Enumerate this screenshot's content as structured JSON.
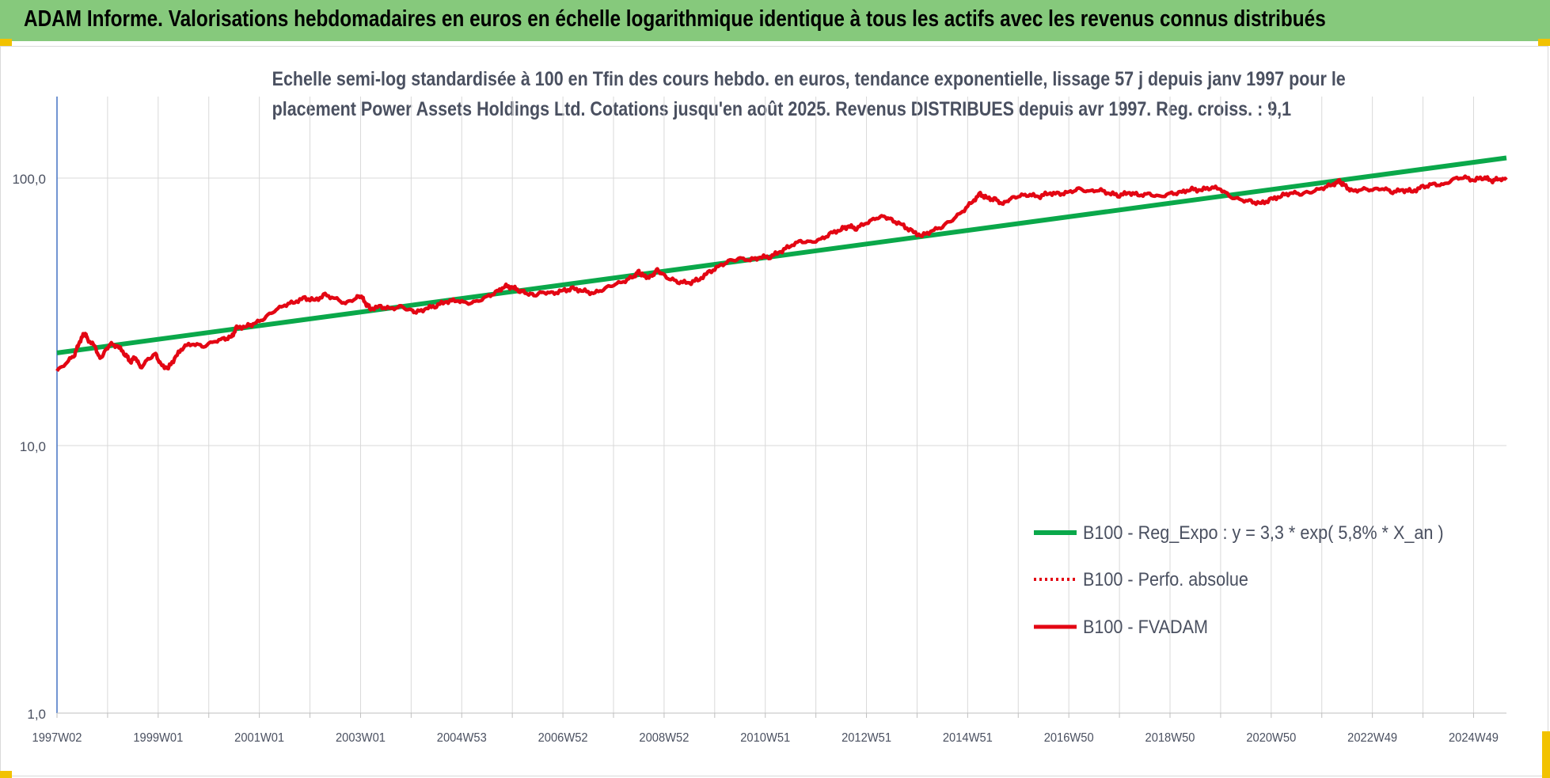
{
  "banner": {
    "title": "ADAM Informe. Valorisations hebdomadaires en euros en échelle logarithmique identique à tous les actifs avec les revenus connus distribués"
  },
  "colors": {
    "banner_bg": "#86c97c",
    "regression": "#0aa84a",
    "performance": "#e30613",
    "grid": "#d9d9d9",
    "axis_text": "#4a5060",
    "handle": "#f2c200"
  },
  "chart_data": {
    "type": "line",
    "title_line1": "Echelle semi-log standardisée à 100 en Tfin des cours hebdo. en euros, tendance exponentielle, lissage 57 j depuis janv 1997 pour le",
    "title_line2": "placement Power Assets Holdings Ltd. Cotations jusqu'en août 2025. Revenus DISTRIBUES depuis avr 1997. Reg. croiss. : 9,1",
    "y_scale": "log",
    "ylim": [
      1,
      200
    ],
    "y_ticks": [
      1,
      10,
      100
    ],
    "y_tick_labels": [
      "1,0",
      "10,0",
      "100,0"
    ],
    "x_range": [
      1997.0,
      2025.65
    ],
    "x_tick_labels": [
      "1997W02",
      "1999W01",
      "2001W01",
      "2003W01",
      "2004W53",
      "2006W52",
      "2008W52",
      "2010W51",
      "2012W51",
      "2014W51",
      "2016W50",
      "2018W50",
      "2020W50",
      "2022W49",
      "2024W49"
    ],
    "x_tick_years": [
      1997.0,
      1999.0,
      2001.0,
      2003.0,
      2005.0,
      2007.0,
      2009.0,
      2011.0,
      2013.0,
      2015.0,
      2017.0,
      2019.0,
      2021.0,
      2023.0,
      2025.0
    ],
    "grid": true,
    "legend_position": "bottom-right",
    "series": [
      {
        "name": "B100 - Reg_Expo : y = 3,3 * exp( 5,8% *  X_an )",
        "style": "solid",
        "points": [
          [
            1997.0,
            22.2
          ],
          [
            2025.65,
            119.0
          ]
        ]
      },
      {
        "name": "B100 - Perfo. absolue",
        "style": "dotted",
        "points": []
      },
      {
        "name": "B100 - FVADAM",
        "style": "solid",
        "points": [
          [
            1997.0,
            19
          ],
          [
            1997.2,
            20.5
          ],
          [
            1997.35,
            22
          ],
          [
            1997.45,
            24.5
          ],
          [
            1997.55,
            26.5
          ],
          [
            1997.6,
            25
          ],
          [
            1997.75,
            23.5
          ],
          [
            1997.85,
            21
          ],
          [
            1997.95,
            22.5
          ],
          [
            1998.05,
            24
          ],
          [
            1998.2,
            23.5
          ],
          [
            1998.35,
            22
          ],
          [
            1998.45,
            20.5
          ],
          [
            1998.55,
            21.5
          ],
          [
            1998.65,
            19.5
          ],
          [
            1998.8,
            21
          ],
          [
            1998.95,
            22
          ],
          [
            1999.05,
            20
          ],
          [
            1999.2,
            19.5
          ],
          [
            1999.35,
            21.5
          ],
          [
            1999.5,
            23.5
          ],
          [
            1999.7,
            24
          ],
          [
            1999.9,
            23.5
          ],
          [
            2000.1,
            24.5
          ],
          [
            2000.3,
            25
          ],
          [
            2000.45,
            25.5
          ],
          [
            2000.55,
            27.5
          ],
          [
            2000.75,
            28
          ],
          [
            2000.9,
            28.5
          ],
          [
            2001.1,
            30
          ],
          [
            2001.3,
            32
          ],
          [
            2001.5,
            33.5
          ],
          [
            2001.7,
            34.5
          ],
          [
            2001.9,
            35.5
          ],
          [
            2002.1,
            35
          ],
          [
            2002.3,
            36.5
          ],
          [
            2002.5,
            35.5
          ],
          [
            2002.7,
            34
          ],
          [
            2002.9,
            35.5
          ],
          [
            2003.0,
            36.5
          ],
          [
            2003.1,
            34
          ],
          [
            2003.2,
            32.5
          ],
          [
            2003.4,
            33
          ],
          [
            2003.6,
            32.5
          ],
          [
            2003.8,
            33
          ],
          [
            2004.0,
            32
          ],
          [
            2004.1,
            31.5
          ],
          [
            2004.3,
            32.5
          ],
          [
            2004.5,
            33.5
          ],
          [
            2004.7,
            34.5
          ],
          [
            2004.9,
            35
          ],
          [
            2005.1,
            34
          ],
          [
            2005.3,
            34.5
          ],
          [
            2005.5,
            36
          ],
          [
            2005.7,
            37.5
          ],
          [
            2005.85,
            39.5
          ],
          [
            2006.0,
            39
          ],
          [
            2006.15,
            38
          ],
          [
            2006.3,
            37
          ],
          [
            2006.45,
            36.5
          ],
          [
            2006.6,
            37.5
          ],
          [
            2006.8,
            37
          ],
          [
            2007.0,
            38
          ],
          [
            2007.2,
            38.5
          ],
          [
            2007.4,
            38
          ],
          [
            2007.6,
            37
          ],
          [
            2007.8,
            38.5
          ],
          [
            2008.0,
            40
          ],
          [
            2008.2,
            41
          ],
          [
            2008.4,
            43
          ],
          [
            2008.5,
            44.5
          ],
          [
            2008.6,
            43
          ],
          [
            2008.75,
            42.5
          ],
          [
            2008.85,
            45.5
          ],
          [
            2008.95,
            44
          ],
          [
            2009.1,
            42
          ],
          [
            2009.3,
            41
          ],
          [
            2009.5,
            40.5
          ],
          [
            2009.7,
            42
          ],
          [
            2009.9,
            44.5
          ],
          [
            2010.1,
            47
          ],
          [
            2010.3,
            49
          ],
          [
            2010.5,
            50
          ],
          [
            2010.7,
            49.5
          ],
          [
            2010.9,
            50.5
          ],
          [
            2011.1,
            51
          ],
          [
            2011.3,
            53
          ],
          [
            2011.5,
            56
          ],
          [
            2011.7,
            58
          ],
          [
            2011.9,
            57.5
          ],
          [
            2012.1,
            59
          ],
          [
            2012.3,
            62
          ],
          [
            2012.5,
            64.5
          ],
          [
            2012.65,
            66
          ],
          [
            2012.8,
            65
          ],
          [
            2013.0,
            68
          ],
          [
            2013.2,
            71
          ],
          [
            2013.35,
            72
          ],
          [
            2013.5,
            69.5
          ],
          [
            2013.7,
            67
          ],
          [
            2013.9,
            63
          ],
          [
            2014.1,
            61
          ],
          [
            2014.3,
            63.5
          ],
          [
            2014.5,
            66
          ],
          [
            2014.7,
            70
          ],
          [
            2014.9,
            75
          ],
          [
            2015.1,
            82
          ],
          [
            2015.25,
            87
          ],
          [
            2015.4,
            84
          ],
          [
            2015.55,
            83
          ],
          [
            2015.7,
            80
          ],
          [
            2015.85,
            84
          ],
          [
            2016.0,
            85.5
          ],
          [
            2016.2,
            87
          ],
          [
            2016.4,
            85
          ],
          [
            2016.6,
            88
          ],
          [
            2016.8,
            87
          ],
          [
            2017.0,
            88.5
          ],
          [
            2017.2,
            91
          ],
          [
            2017.4,
            89
          ],
          [
            2017.6,
            90.5
          ],
          [
            2017.8,
            87.5
          ],
          [
            2018.0,
            86.5
          ],
          [
            2018.2,
            88
          ],
          [
            2018.4,
            86.5
          ],
          [
            2018.6,
            87
          ],
          [
            2018.8,
            85
          ],
          [
            2019.0,
            87.5
          ],
          [
            2019.2,
            88
          ],
          [
            2019.4,
            91
          ],
          [
            2019.6,
            90
          ],
          [
            2019.8,
            92.5
          ],
          [
            2020.0,
            91
          ],
          [
            2020.2,
            85
          ],
          [
            2020.4,
            83
          ],
          [
            2020.6,
            81.5
          ],
          [
            2020.8,
            80.5
          ],
          [
            2021.0,
            83
          ],
          [
            2021.2,
            86
          ],
          [
            2021.4,
            88
          ],
          [
            2021.6,
            87.5
          ],
          [
            2021.8,
            89
          ],
          [
            2022.0,
            91.5
          ],
          [
            2022.2,
            94.5
          ],
          [
            2022.35,
            97
          ],
          [
            2022.45,
            94
          ],
          [
            2022.6,
            89
          ],
          [
            2022.8,
            91
          ],
          [
            2023.0,
            90.5
          ],
          [
            2023.2,
            91.5
          ],
          [
            2023.4,
            89
          ],
          [
            2023.6,
            90
          ],
          [
            2023.8,
            89.5
          ],
          [
            2024.0,
            92.5
          ],
          [
            2024.2,
            95
          ],
          [
            2024.4,
            94
          ],
          [
            2024.6,
            99
          ],
          [
            2024.8,
            101
          ],
          [
            2025.0,
            98
          ],
          [
            2025.2,
            101
          ],
          [
            2025.35,
            97.5
          ],
          [
            2025.5,
            99.5
          ],
          [
            2025.65,
            98.5
          ]
        ]
      }
    ]
  }
}
